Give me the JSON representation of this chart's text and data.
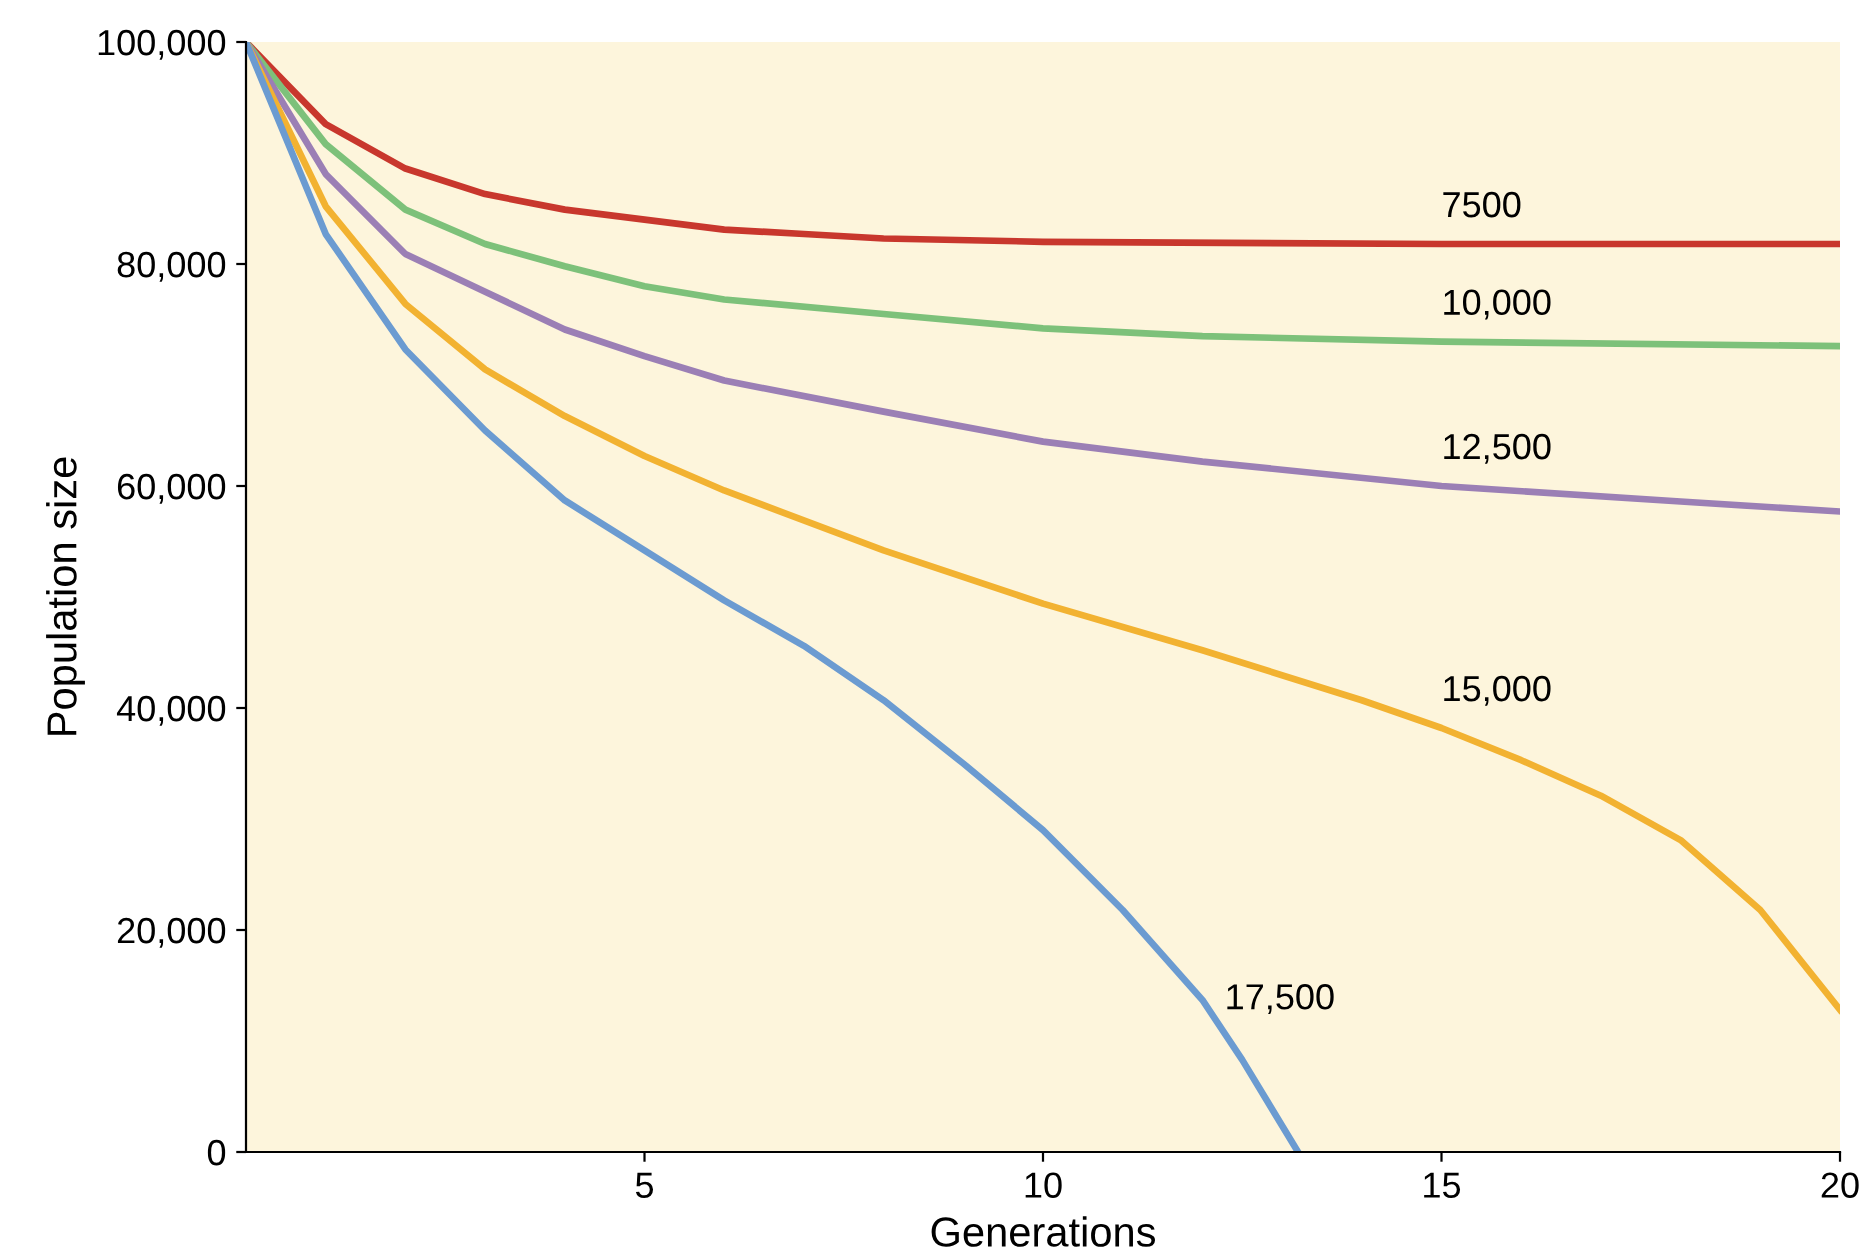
{
  "chart_data": {
    "type": "line",
    "xlabel": "Generations",
    "ylabel": "Population size",
    "xlim": [
      0,
      20
    ],
    "xticks": [
      5,
      10,
      15,
      20
    ],
    "ylim": [
      0,
      100000
    ],
    "yticks": [
      0,
      {
        "value": 20000,
        "label": "20,000"
      },
      {
        "value": 40000,
        "label": "40,000"
      },
      {
        "value": 60000,
        "label": "60,000"
      },
      {
        "value": 80000,
        "label": "80,000"
      },
      {
        "value": 100000,
        "label": "100,000"
      }
    ],
    "grid": false,
    "legend": false,
    "marker": "none",
    "line_style": "solid",
    "series": [
      {
        "name": "7500",
        "color": "#c8372d",
        "x": [
          0,
          1,
          2,
          3,
          4,
          5,
          6,
          7,
          8,
          10,
          15,
          20
        ],
        "values": [
          100000,
          92600,
          88600,
          86300,
          84900,
          84000,
          83100,
          82700,
          82300,
          82000,
          81800,
          81800
        ]
      },
      {
        "name": "10,000",
        "color": "#7dc17a",
        "x": [
          0,
          1,
          2,
          3,
          4,
          5,
          6,
          8,
          10,
          12,
          15,
          20
        ],
        "values": [
          100000,
          90800,
          84900,
          81800,
          79800,
          78000,
          76800,
          75500,
          74200,
          73500,
          73000,
          72600
        ]
      },
      {
        "name": "12,500",
        "color": "#9b7fb5",
        "x": [
          0,
          1,
          2,
          3,
          4,
          5,
          6,
          8,
          10,
          12,
          15,
          18,
          20
        ],
        "values": [
          100000,
          88100,
          80900,
          77500,
          74100,
          71700,
          69500,
          66700,
          64000,
          62200,
          60000,
          58600,
          57700
        ]
      },
      {
        "name": "15,000",
        "color": "#f2b231",
        "x": [
          0,
          1,
          2,
          3,
          4,
          5,
          6,
          8,
          10,
          12,
          14,
          15,
          16,
          17,
          18,
          19,
          20
        ],
        "values": [
          100000,
          85200,
          76400,
          70500,
          66300,
          62700,
          59600,
          54200,
          49400,
          45200,
          40700,
          38200,
          35300,
          32100,
          28100,
          21800,
          12800
        ]
      },
      {
        "name": "17,500",
        "color": "#6b9bd1",
        "x": [
          0,
          1,
          2,
          3,
          4,
          5,
          6,
          7,
          8,
          9,
          10,
          11,
          12,
          12.5,
          13.2
        ],
        "values": [
          100000,
          82700,
          72300,
          65000,
          58700,
          54200,
          49700,
          45600,
          40700,
          35000,
          29000,
          21800,
          13700,
          8300,
          0
        ]
      }
    ]
  }
}
